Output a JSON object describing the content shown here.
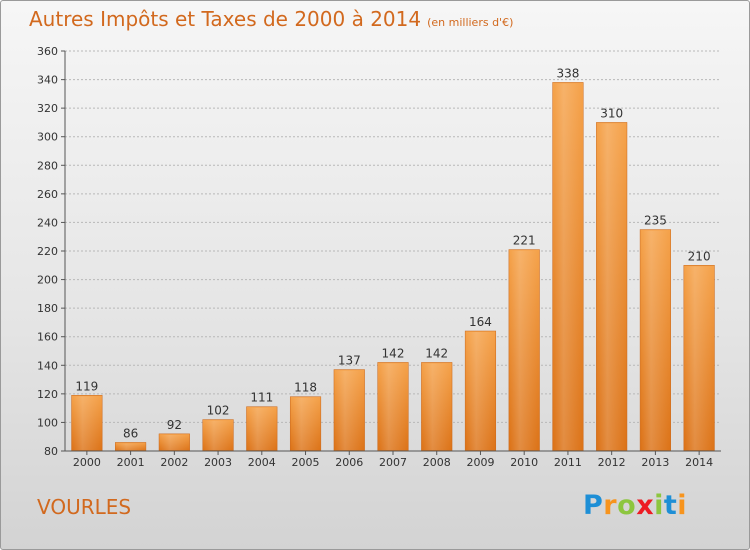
{
  "chart_data": {
    "type": "bar",
    "title": "Autres Impôts et Taxes de 2000 à 2014",
    "subtitle": "(en milliers d'€)",
    "categories": [
      "2000",
      "2001",
      "2002",
      "2003",
      "2004",
      "2005",
      "2006",
      "2007",
      "2008",
      "2009",
      "2010",
      "2011",
      "2012",
      "2013",
      "2014"
    ],
    "values": [
      119,
      86,
      92,
      102,
      111,
      118,
      137,
      142,
      142,
      164,
      221,
      338,
      310,
      235,
      210
    ],
    "ylim": [
      80,
      360
    ],
    "yticks": [
      80,
      100,
      120,
      140,
      160,
      180,
      200,
      220,
      240,
      260,
      280,
      300,
      320,
      340,
      360
    ],
    "grid": "horizontal dashed",
    "xlabel": "",
    "ylabel": "",
    "bar_color": "#f0902a"
  },
  "location": "VOURLES",
  "brand": {
    "letters": [
      "P",
      "r",
      "o",
      "x",
      "i",
      "t",
      "i"
    ],
    "colors": [
      "#1e8fd6",
      "#f7941d",
      "#8dc63f",
      "#ed1c24",
      "#8dc63f",
      "#1e8fd6",
      "#f7941d"
    ]
  }
}
